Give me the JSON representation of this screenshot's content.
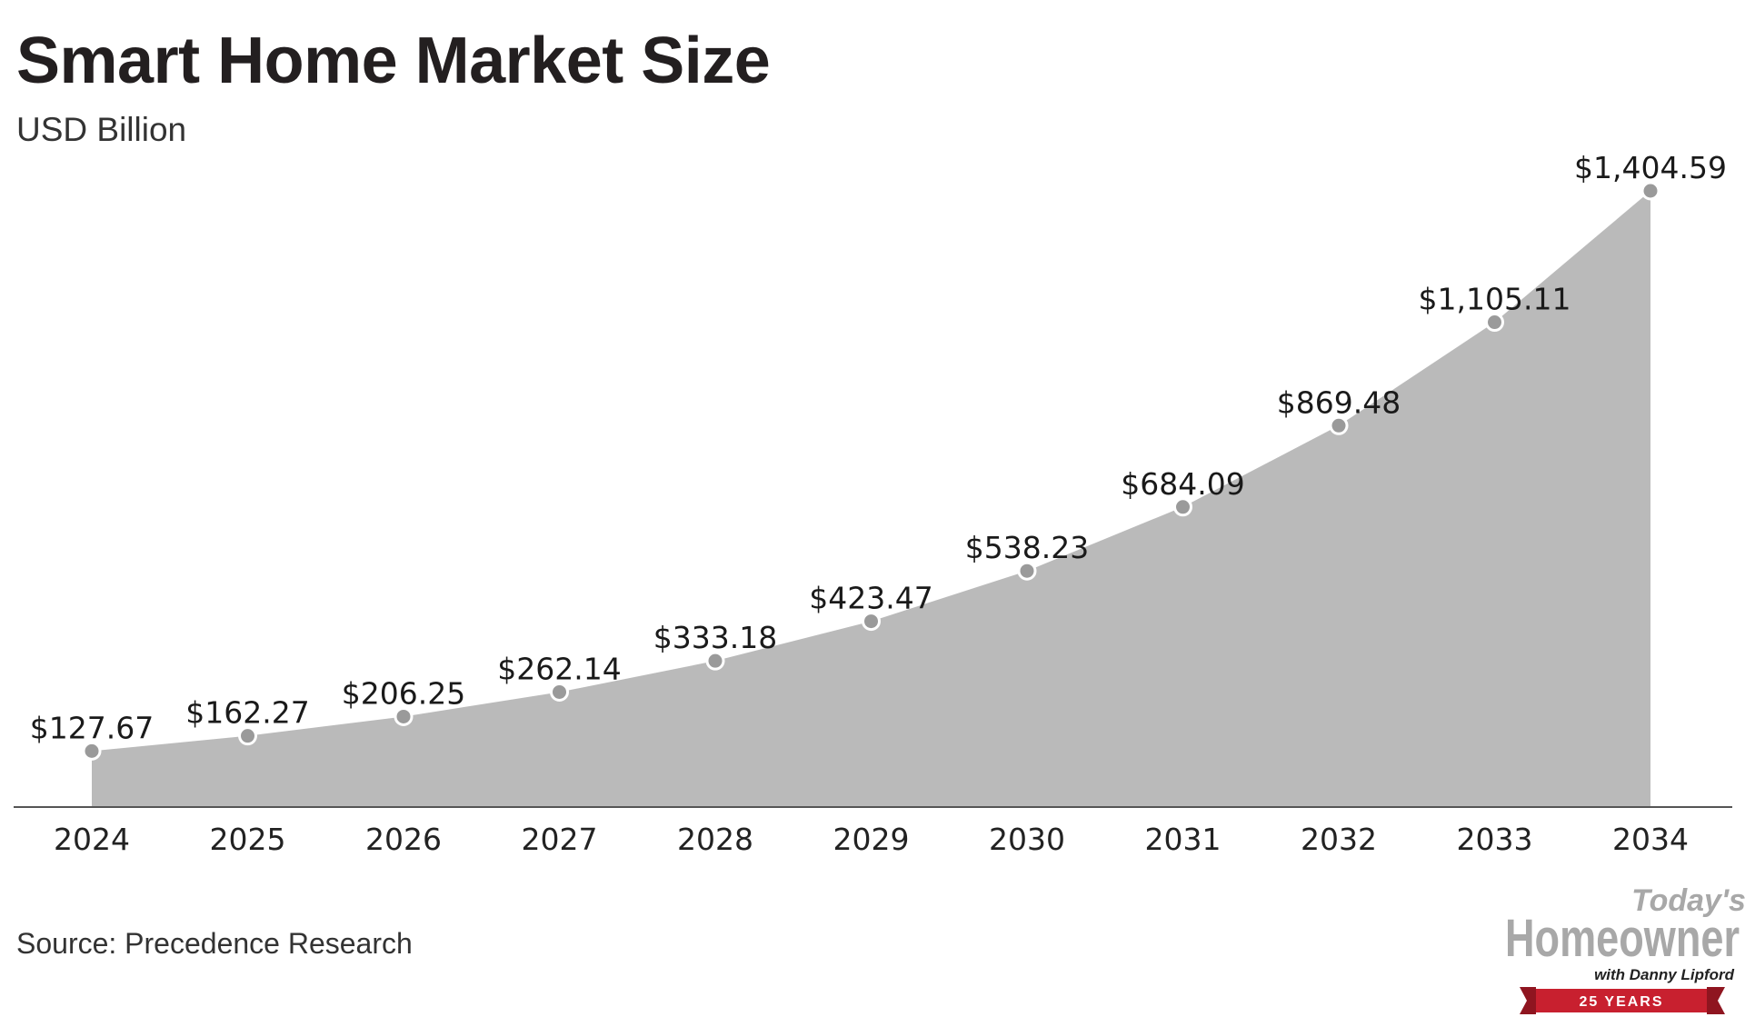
{
  "chart_data": {
    "type": "area",
    "title": "Smart Home Market Size",
    "subtitle": "USD Billion",
    "x": [
      "2024",
      "2025",
      "2026",
      "2027",
      "2028",
      "2029",
      "2030",
      "2031",
      "2032",
      "2033",
      "2034"
    ],
    "values": [
      127.67,
      162.27,
      206.25,
      262.14,
      333.18,
      423.47,
      538.23,
      684.09,
      869.48,
      1105.11,
      1404.59
    ],
    "data_labels": [
      "$127.67",
      "$162.27",
      "$206.25",
      "$262.14",
      "$333.18",
      "$423.47",
      "$538.23",
      "$684.09",
      "$869.48",
      "$1,105.11",
      "$1,404.59"
    ],
    "xlabel": "",
    "ylabel": "",
    "grid": false,
    "legend": "none",
    "fill_color": "#bababa",
    "marker_fill": "#9a9a9a",
    "marker_stroke": "#ffffff",
    "axis_color": "#555555",
    "source": "Source: Precedence Research"
  },
  "logo": {
    "line1": "Today's",
    "line2": "Homeowner",
    "line3": "with Danny Lipford",
    "line4": "25 YEARS",
    "text_color": "#a8a8a8",
    "banner_color": "#c8202f"
  }
}
